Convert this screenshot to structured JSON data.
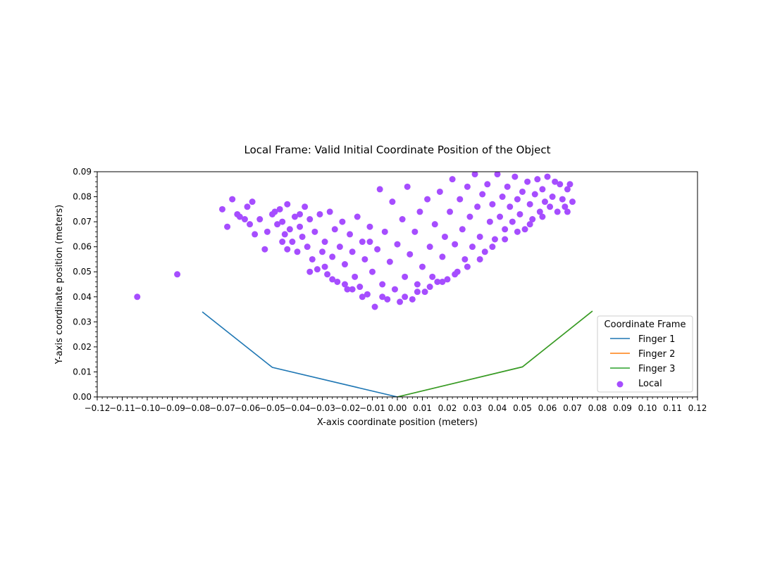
{
  "chart_data": {
    "type": "scatter",
    "title": "Local Frame: Valid Initial Coordinate Position of the Object",
    "xlabel": "X-axis coordinate position (meters)",
    "ylabel": "Y-axis coordinate position (meters)",
    "xlim": [
      -0.12,
      0.12
    ],
    "ylim": [
      0.0,
      0.09
    ],
    "x_ticks": [
      "−0.12",
      "−0.11",
      "−0.10",
      "−0.09",
      "−0.08",
      "−0.07",
      "−0.06",
      "−0.05",
      "−0.04",
      "−0.03",
      "−0.02",
      "−0.01",
      "0.00",
      "0.01",
      "0.02",
      "0.03",
      "0.04",
      "0.05",
      "0.06",
      "0.07",
      "0.08",
      "0.09",
      "0.10",
      "0.11",
      "0.12"
    ],
    "y_ticks": [
      "0.00",
      "0.01",
      "0.02",
      "0.03",
      "0.04",
      "0.05",
      "0.06",
      "0.07",
      "0.08",
      "0.09"
    ],
    "grid": false,
    "legend": {
      "title": "Coordinate Frame",
      "placement": "lower-right"
    },
    "series": [
      {
        "name": "Finger 1",
        "kind": "line",
        "color": "#1f77b4",
        "x": [
          -0.078,
          -0.05,
          0.0
        ],
        "y": [
          0.034,
          0.0118,
          0.0
        ]
      },
      {
        "name": "Finger 2",
        "kind": "line",
        "color": "#ff7f0e",
        "x": [
          0.0,
          0.05,
          0.078
        ],
        "y": [
          0.0,
          0.012,
          0.0343
        ]
      },
      {
        "name": "Finger 3",
        "kind": "line",
        "color": "#2ca02c",
        "x": [
          0.0,
          0.05,
          0.078
        ],
        "y": [
          0.0,
          0.012,
          0.0343
        ]
      },
      {
        "name": "Local",
        "kind": "scatter",
        "color": "#a64dff",
        "points": [
          [
            -0.104,
            0.04
          ],
          [
            -0.088,
            0.049
          ],
          [
            -0.07,
            0.075
          ],
          [
            -0.066,
            0.079
          ],
          [
            -0.064,
            0.073
          ],
          [
            -0.061,
            0.071
          ],
          [
            -0.06,
            0.076
          ],
          [
            -0.058,
            0.078
          ],
          [
            -0.059,
            0.069
          ],
          [
            -0.055,
            0.071
          ],
          [
            -0.052,
            0.066
          ],
          [
            -0.05,
            0.073
          ],
          [
            -0.048,
            0.069
          ],
          [
            -0.047,
            0.075
          ],
          [
            -0.046,
            0.07
          ],
          [
            -0.045,
            0.065
          ],
          [
            -0.044,
            0.077
          ],
          [
            -0.043,
            0.067
          ],
          [
            -0.042,
            0.062
          ],
          [
            -0.041,
            0.072
          ],
          [
            -0.04,
            0.058
          ],
          [
            -0.039,
            0.068
          ],
          [
            -0.038,
            0.064
          ],
          [
            -0.037,
            0.076
          ],
          [
            -0.036,
            0.06
          ],
          [
            -0.035,
            0.071
          ],
          [
            -0.034,
            0.055
          ],
          [
            -0.033,
            0.066
          ],
          [
            -0.032,
            0.051
          ],
          [
            -0.031,
            0.073
          ],
          [
            -0.03,
            0.058
          ],
          [
            -0.029,
            0.062
          ],
          [
            -0.028,
            0.049
          ],
          [
            -0.027,
            0.074
          ],
          [
            -0.026,
            0.056
          ],
          [
            -0.025,
            0.067
          ],
          [
            -0.024,
            0.046
          ],
          [
            -0.023,
            0.06
          ],
          [
            -0.022,
            0.07
          ],
          [
            -0.021,
            0.053
          ],
          [
            -0.02,
            0.043
          ],
          [
            -0.019,
            0.065
          ],
          [
            -0.018,
            0.058
          ],
          [
            -0.017,
            0.048
          ],
          [
            -0.016,
            0.072
          ],
          [
            -0.015,
            0.044
          ],
          [
            -0.014,
            0.062
          ],
          [
            -0.013,
            0.055
          ],
          [
            -0.012,
            0.041
          ],
          [
            -0.011,
            0.068
          ],
          [
            -0.01,
            0.05
          ],
          [
            -0.009,
            0.036
          ],
          [
            -0.008,
            0.059
          ],
          [
            -0.007,
            0.083
          ],
          [
            -0.006,
            0.045
          ],
          [
            -0.005,
            0.066
          ],
          [
            -0.004,
            0.039
          ],
          [
            -0.003,
            0.054
          ],
          [
            -0.002,
            0.078
          ],
          [
            -0.001,
            0.043
          ],
          [
            0.0,
            0.061
          ],
          [
            0.001,
            0.038
          ],
          [
            0.002,
            0.071
          ],
          [
            0.003,
            0.048
          ],
          [
            0.004,
            0.084
          ],
          [
            0.005,
            0.057
          ],
          [
            0.006,
            0.039
          ],
          [
            0.007,
            0.066
          ],
          [
            0.008,
            0.045
          ],
          [
            0.009,
            0.074
          ],
          [
            0.01,
            0.052
          ],
          [
            0.011,
            0.042
          ],
          [
            0.012,
            0.079
          ],
          [
            0.013,
            0.06
          ],
          [
            0.014,
            0.048
          ],
          [
            0.015,
            0.069
          ],
          [
            0.016,
            0.046
          ],
          [
            0.017,
            0.082
          ],
          [
            0.018,
            0.056
          ],
          [
            0.019,
            0.064
          ],
          [
            0.02,
            0.047
          ],
          [
            0.021,
            0.074
          ],
          [
            0.022,
            0.087
          ],
          [
            0.023,
            0.061
          ],
          [
            0.024,
            0.05
          ],
          [
            0.025,
            0.079
          ],
          [
            0.026,
            0.067
          ],
          [
            0.027,
            0.055
          ],
          [
            0.028,
            0.084
          ],
          [
            0.029,
            0.072
          ],
          [
            0.03,
            0.06
          ],
          [
            0.031,
            0.089
          ],
          [
            0.032,
            0.076
          ],
          [
            0.033,
            0.064
          ],
          [
            0.034,
            0.081
          ],
          [
            0.035,
            0.058
          ],
          [
            0.036,
            0.085
          ],
          [
            0.037,
            0.07
          ],
          [
            0.038,
            0.077
          ],
          [
            0.039,
            0.063
          ],
          [
            0.04,
            0.089
          ],
          [
            0.041,
            0.072
          ],
          [
            0.042,
            0.08
          ],
          [
            0.043,
            0.067
          ],
          [
            0.044,
            0.084
          ],
          [
            0.045,
            0.076
          ],
          [
            0.046,
            0.07
          ],
          [
            0.047,
            0.088
          ],
          [
            0.048,
            0.079
          ],
          [
            0.049,
            0.073
          ],
          [
            0.05,
            0.082
          ],
          [
            0.051,
            0.067
          ],
          [
            0.052,
            0.086
          ],
          [
            0.053,
            0.077
          ],
          [
            0.054,
            0.071
          ],
          [
            0.055,
            0.081
          ],
          [
            0.056,
            0.087
          ],
          [
            0.057,
            0.074
          ],
          [
            0.058,
            0.083
          ],
          [
            0.059,
            0.078
          ],
          [
            0.06,
            0.088
          ],
          [
            0.061,
            0.076
          ],
          [
            0.062,
            0.08
          ],
          [
            0.063,
            0.086
          ],
          [
            0.064,
            0.074
          ],
          [
            0.065,
            0.085
          ],
          [
            0.066,
            0.079
          ],
          [
            0.067,
            0.076
          ],
          [
            0.068,
            0.083
          ],
          [
            0.069,
            0.085
          ],
          [
            0.07,
            0.078
          ],
          [
            -0.068,
            0.068
          ],
          [
            -0.063,
            0.072
          ],
          [
            -0.057,
            0.065
          ],
          [
            -0.053,
            0.059
          ],
          [
            -0.049,
            0.074
          ],
          [
            -0.046,
            0.062
          ],
          [
            -0.044,
            0.059
          ],
          [
            -0.039,
            0.073
          ],
          [
            -0.035,
            0.05
          ],
          [
            -0.029,
            0.052
          ],
          [
            -0.026,
            0.047
          ],
          [
            -0.021,
            0.045
          ],
          [
            -0.018,
            0.043
          ],
          [
            -0.014,
            0.04
          ],
          [
            -0.011,
            0.062
          ],
          [
            -0.006,
            0.04
          ],
          [
            0.003,
            0.04
          ],
          [
            0.008,
            0.042
          ],
          [
            0.013,
            0.044
          ],
          [
            0.018,
            0.046
          ],
          [
            0.023,
            0.049
          ],
          [
            0.028,
            0.052
          ],
          [
            0.033,
            0.055
          ],
          [
            0.038,
            0.06
          ],
          [
            0.043,
            0.063
          ],
          [
            0.048,
            0.066
          ],
          [
            0.053,
            0.069
          ],
          [
            0.058,
            0.072
          ],
          [
            0.068,
            0.074
          ]
        ]
      }
    ]
  }
}
